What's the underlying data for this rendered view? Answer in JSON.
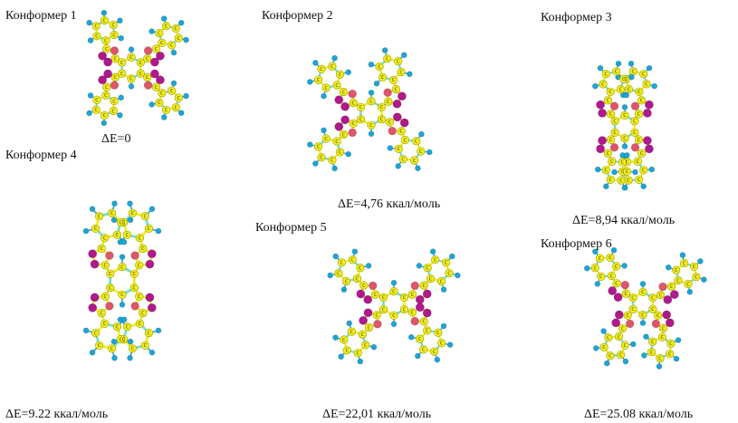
{
  "colors": {
    "carbon": "#f2ee1c",
    "carbon_stroke": "#9a9a00",
    "bond": "#eeee22",
    "aromatic_bond": "#6fe0c8",
    "oxygen": "#e0556a",
    "nitrogen": "#b0188c",
    "hydrogen": "#1aa6d6",
    "text": "#111111"
  },
  "atom_label": "C",
  "conformers": [
    {
      "title": "Конформер 1",
      "energy": "ΔE=0"
    },
    {
      "title": "Конформер 2",
      "energy": "ΔE=4,76 ккал/моль"
    },
    {
      "title": "Конформер 3",
      "energy": "ΔE=8,94 ккал/моль"
    },
    {
      "title": "Конформер 4",
      "energy": "ΔE=9.22 ккал/моль"
    },
    {
      "title": "Конформер 5",
      "energy": "ΔE=22,01 ккал/моль"
    },
    {
      "title": "Конформер 6",
      "energy": "ΔE=25.08 ккал/моль"
    }
  ]
}
